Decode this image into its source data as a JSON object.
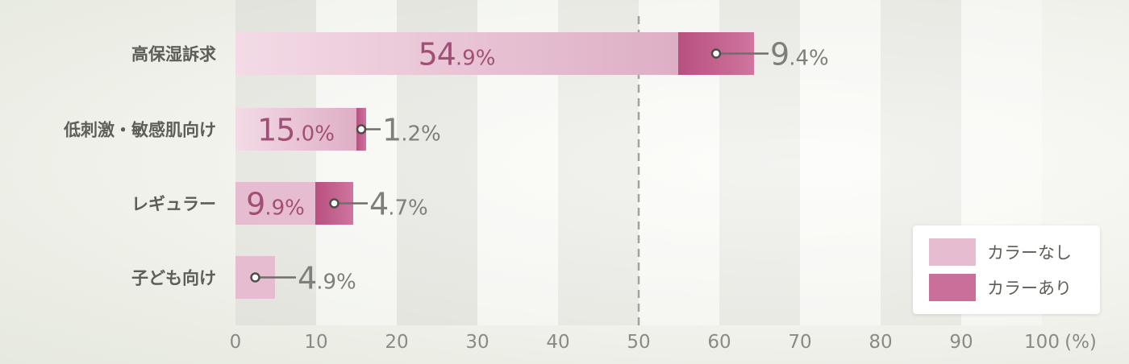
{
  "chart_data": {
    "type": "bar",
    "orientation": "horizontal",
    "stacked": true,
    "categories": [
      "高保湿訴求",
      "低刺激・敏感肌向け",
      "レギュラー",
      "子ども向け"
    ],
    "series": [
      {
        "name": "カラーなし",
        "values": [
          54.9,
          15.0,
          9.9,
          4.9
        ],
        "color": "#e6bdd0"
      },
      {
        "name": "カラーあり",
        "values": [
          9.4,
          1.2,
          4.7,
          null
        ],
        "color": "#c96f9a"
      }
    ],
    "inside_labels": [
      "54.9%",
      "15.0%",
      "9.9%",
      null
    ],
    "outside_labels": [
      "9.4%",
      "1.2%",
      "4.7%",
      "4.9%"
    ],
    "xlim": [
      0,
      100
    ],
    "x_ticks": [
      "0",
      "10",
      "20",
      "30",
      "40",
      "50",
      "60",
      "70",
      "80",
      "90",
      "100"
    ],
    "x_unit": "(%)",
    "reference_line": 50,
    "grid": "alternating bands",
    "legend_position": "bottom-right"
  }
}
